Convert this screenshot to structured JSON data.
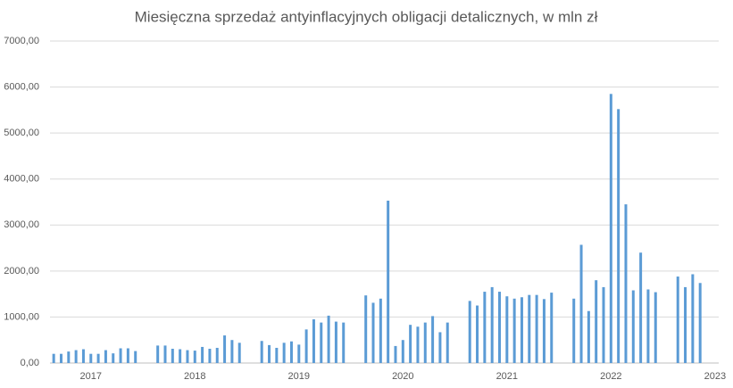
{
  "chart_data": {
    "type": "bar",
    "title": "Miesięczna sprzedaż antyinflacyjnych obligacji detalicznych, w mln zł",
    "color": "#5b9bd5",
    "grid": true,
    "categories": [
      null,
      null,
      null,
      null,
      null,
      "2017",
      null,
      null,
      null,
      null,
      null,
      null,
      null,
      null,
      null,
      null,
      null,
      null,
      null,
      "2018",
      null,
      null,
      null,
      null,
      null,
      null,
      null,
      null,
      null,
      null,
      null,
      null,
      null,
      "2019",
      null,
      null,
      null,
      null,
      null,
      null,
      null,
      null,
      null,
      null,
      null,
      null,
      null,
      "2020",
      null,
      null,
      null,
      null,
      null,
      null,
      null,
      null,
      null,
      null,
      null,
      null,
      null,
      "2021",
      null,
      null,
      null,
      null,
      null,
      null,
      null,
      null,
      null,
      null,
      null,
      null,
      null,
      "2022",
      null,
      null,
      null,
      null,
      null,
      null,
      null,
      null,
      null,
      null,
      null,
      null,
      null,
      "2023"
    ],
    "values": [
      200,
      200,
      250,
      280,
      300,
      200,
      200,
      280,
      210,
      320,
      320,
      260,
      null,
      null,
      380,
      380,
      310,
      300,
      280,
      270,
      350,
      310,
      330,
      600,
      500,
      440,
      null,
      null,
      480,
      390,
      330,
      440,
      470,
      400,
      730,
      950,
      880,
      1030,
      900,
      880,
      null,
      null,
      1470,
      1310,
      1400,
      3530,
      370,
      500,
      830,
      790,
      880,
      1020,
      670,
      880,
      null,
      null,
      1350,
      1250,
      1550,
      1650,
      1550,
      1450,
      1400,
      1430,
      1480,
      1480,
      1390,
      1530,
      null,
      null,
      1400,
      2570,
      1130,
      1800,
      1650,
      5850,
      5520,
      3450,
      1580,
      2400,
      1600,
      1540,
      null,
      null,
      1880,
      1650,
      1930,
      1740,
      null,
      null
    ],
    "ylim": [
      0,
      7000
    ],
    "yticks": [
      {
        "value": 0,
        "label": "0,00"
      },
      {
        "value": 1000,
        "label": "1000,00"
      },
      {
        "value": 2000,
        "label": "2000,00"
      },
      {
        "value": 3000,
        "label": "3000,00"
      },
      {
        "value": 4000,
        "label": "4000,00"
      },
      {
        "value": 5000,
        "label": "5000,00"
      },
      {
        "value": 6000,
        "label": "6000,00"
      },
      {
        "value": 7000,
        "label": "7000,00"
      }
    ]
  }
}
